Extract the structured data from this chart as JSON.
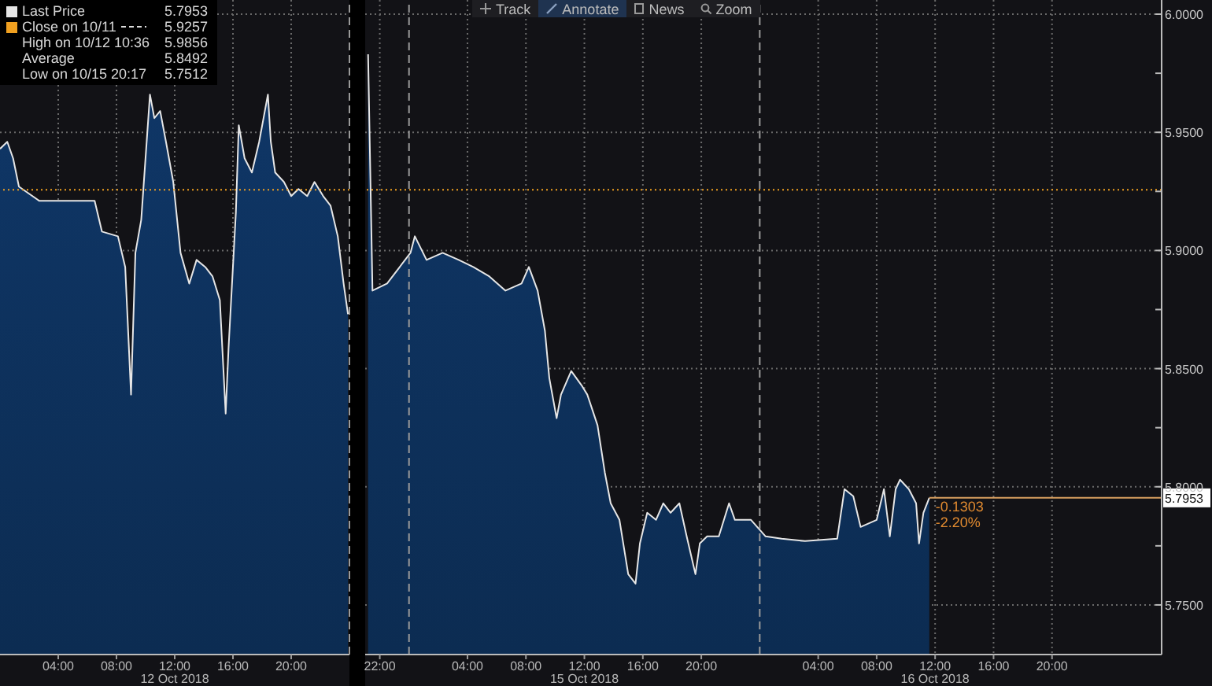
{
  "chart_data": [
    {
      "type": "area",
      "legend": "top left",
      "grid": true,
      "tick_labels": "x",
      "x": [
        "2018-10-12T00:00",
        "2018-10-12T00:30",
        "2018-10-12T00:54",
        "2018-10-12T01:18",
        "2018-10-12T02:42",
        "2018-10-12T06:30",
        "2018-10-12T07:00",
        "2018-10-12T08:06",
        "2018-10-12T08:36",
        "2018-10-12T09:00",
        "2018-10-12T09:18",
        "2018-10-12T09:42",
        "2018-10-12T10:18",
        "2018-10-12T10:36",
        "2018-10-12T11:00",
        "2018-10-12T11:24",
        "2018-10-12T11:54",
        "2018-10-12T12:24",
        "2018-10-12T13:00",
        "2018-10-12T13:30",
        "2018-10-12T14:06",
        "2018-10-12T14:36",
        "2018-10-12T15:06",
        "2018-10-12T15:30",
        "2018-10-12T15:42",
        "2018-10-12T16:12",
        "2018-10-12T16:24",
        "2018-10-12T16:48",
        "2018-10-12T17:18",
        "2018-10-12T17:48",
        "2018-10-12T18:24",
        "2018-10-12T18:36",
        "2018-10-12T18:54",
        "2018-10-12T19:30",
        "2018-10-12T20:00",
        "2018-10-12T20:30",
        "2018-10-12T21:06",
        "2018-10-12T21:36",
        "2018-10-12T22:12",
        "2018-10-12T22:42",
        "2018-10-12T23:12",
        "2018-10-12T23:36",
        "2018-10-12T23:54"
      ],
      "series": [
        {
          "name": "Last Price",
          "color": "#e6e6e6",
          "values": [
            5.943,
            5.946,
            5.939,
            5.927,
            5.921,
            5.921,
            5.908,
            5.906,
            5.893,
            5.839,
            5.899,
            5.913,
            5.966,
            5.956,
            5.959,
            5.946,
            5.929,
            5.899,
            5.886,
            5.896,
            5.893,
            5.889,
            5.879,
            5.831,
            5.859,
            5.916,
            5.953,
            5.939,
            5.933,
            5.946,
            5.966,
            5.946,
            5.933,
            5.929,
            5.923,
            5.926,
            5.923,
            5.929,
            5.923,
            5.919,
            5.906,
            5.886,
            5.873
          ]
        }
      ],
      "xlim": [
        "2018-10-12T00:00",
        "2018-10-13T00:00"
      ],
      "xticks": [
        {
          "value": "2018-10-12T04:00",
          "label": "04:00"
        },
        {
          "value": "2018-10-12T08:00",
          "label": "08:00"
        },
        {
          "value": "2018-10-12T12:00",
          "label": "12:00"
        },
        {
          "value": "2018-10-12T16:00",
          "label": "16:00"
        },
        {
          "value": "2018-10-12T20:00",
          "label": "20:00"
        }
      ],
      "ylim": [
        5.729,
        6.006
      ],
      "yticks": [
        5.75,
        5.8,
        5.85,
        5.9,
        5.95,
        6.0
      ],
      "ref_lines": [
        {
          "axis": "y",
          "value": 5.9257,
          "label": "Close on 10/11",
          "color": "#f0a020",
          "line_style": "dotted"
        },
        {
          "axis": "x",
          "value": "2018-10-13T00:00",
          "color": "#9a9a9a",
          "line_style": "dashed"
        }
      ],
      "annotations": [
        "5.7953",
        "5.9257",
        "High on 10/12 10:36",
        "5.9856",
        "Average",
        "5.8492",
        "Low on 10/15 20:17",
        "5.7512",
        "12 Oct 2018"
      ]
    },
    {
      "type": "area",
      "grid": true,
      "x": [
        "2018-10-14T21:12",
        "2018-10-14T21:30",
        "2018-10-14T22:30",
        "2018-10-15T00:06",
        "2018-10-15T00:24",
        "2018-10-15T01:12",
        "2018-10-15T02:18",
        "2018-10-15T03:24",
        "2018-10-15T04:24",
        "2018-10-15T05:30",
        "2018-10-15T06:36",
        "2018-10-15T07:42",
        "2018-10-15T08:12",
        "2018-10-15T08:48",
        "2018-10-15T09:18",
        "2018-10-15T09:36",
        "2018-10-15T10:06",
        "2018-10-15T10:24",
        "2018-10-15T11:06",
        "2018-10-15T11:48",
        "2018-10-15T12:12",
        "2018-10-15T12:54",
        "2018-10-15T13:24",
        "2018-10-15T13:48",
        "2018-10-15T14:24",
        "2018-10-15T15:00",
        "2018-10-15T15:30",
        "2018-10-15T15:48",
        "2018-10-15T16:18",
        "2018-10-15T16:54",
        "2018-10-15T17:24",
        "2018-10-15T17:54",
        "2018-10-15T18:30",
        "2018-10-15T19:00",
        "2018-10-15T19:36",
        "2018-10-15T19:54",
        "2018-10-15T20:24",
        "2018-10-15T21:12",
        "2018-10-15T21:54",
        "2018-10-15T22:18",
        "2018-10-15T23:24",
        "2018-10-16T00:24",
        "2018-10-16T01:30",
        "2018-10-16T03:06",
        "2018-10-16T05:18",
        "2018-10-16T05:48",
        "2018-10-16T06:24",
        "2018-10-16T06:54",
        "2018-10-16T08:00",
        "2018-10-16T08:30",
        "2018-10-16T08:54",
        "2018-10-16T09:18",
        "2018-10-16T09:36",
        "2018-10-16T10:12",
        "2018-10-16T10:42",
        "2018-10-16T10:54",
        "2018-10-16T11:12",
        "2018-10-16T11:36"
      ],
      "series": [
        {
          "color": "#e6e6e6",
          "values": [
            5.983,
            5.883,
            5.886,
            5.899,
            5.906,
            5.896,
            5.899,
            5.896,
            5.893,
            5.889,
            5.883,
            5.886,
            5.893,
            5.883,
            5.866,
            5.846,
            5.829,
            5.839,
            5.849,
            5.843,
            5.839,
            5.826,
            5.806,
            5.793,
            5.786,
            5.763,
            5.759,
            5.776,
            5.789,
            5.786,
            5.793,
            5.789,
            5.793,
            5.779,
            5.763,
            5.776,
            5.779,
            5.779,
            5.793,
            5.786,
            5.786,
            5.779,
            5.778,
            5.777,
            5.778,
            5.799,
            5.796,
            5.783,
            5.786,
            5.799,
            5.779,
            5.799,
            5.803,
            5.799,
            5.793,
            5.776,
            5.789,
            5.7953
          ]
        }
      ],
      "xlim": [
        "2018-10-14T21:00",
        "2018-10-17T03:30"
      ],
      "xticks": [
        {
          "value": "2018-10-14T22:00",
          "label": "22:00"
        },
        {
          "value": "2018-10-15T04:00",
          "label": "04:00"
        },
        {
          "value": "2018-10-15T08:00",
          "label": "08:00"
        },
        {
          "value": "2018-10-15T12:00",
          "label": "12:00"
        },
        {
          "value": "2018-10-15T16:00",
          "label": "16:00"
        },
        {
          "value": "2018-10-15T20:00",
          "label": "20:00"
        },
        {
          "value": "2018-10-16T04:00",
          "label": "04:00"
        },
        {
          "value": "2018-10-16T08:00",
          "label": "08:00"
        },
        {
          "value": "2018-10-16T12:00",
          "label": "12:00"
        },
        {
          "value": "2018-10-16T16:00",
          "label": "16:00"
        },
        {
          "value": "2018-10-16T20:00",
          "label": "20:00"
        }
      ],
      "ylim": [
        5.729,
        6.006
      ],
      "yticks": [
        {
          "value": 5.75,
          "label": "5.7500"
        },
        {
          "value": 5.775,
          "label": null
        },
        {
          "value": 5.8,
          "label": "5.8000"
        },
        {
          "value": 5.825,
          "label": null
        },
        {
          "value": 5.85,
          "label": "5.8500"
        },
        {
          "value": 5.875,
          "label": null
        },
        {
          "value": 5.9,
          "label": "5.9000"
        },
        {
          "value": 5.925,
          "label": null
        },
        {
          "value": 5.95,
          "label": "5.9500"
        },
        {
          "value": 5.975,
          "label": null
        },
        {
          "value": 6.0,
          "label": "6.0000"
        }
      ],
      "ref_lines": [
        {
          "axis": "y",
          "value": 5.9257,
          "color": "#f0a020",
          "line_style": "dotted"
        },
        {
          "axis": "y",
          "value": 5.7953,
          "label": "5.7953",
          "color": "#d9a060",
          "line_style": "solid"
        },
        {
          "axis": "x",
          "value": "2018-10-15T00:00",
          "color": "#9a9a9a",
          "line_style": "dashed"
        },
        {
          "axis": "x",
          "value": "2018-10-16T00:00",
          "color": "#9a9a9a",
          "line_style": "dashed"
        }
      ],
      "annotations": [
        "-0.1303",
        "-2.20%",
        "Track",
        "Annotate",
        "News",
        "Zoom",
        "15 Oct 2018",
        "16 Oct 2018"
      ]
    }
  ]
}
